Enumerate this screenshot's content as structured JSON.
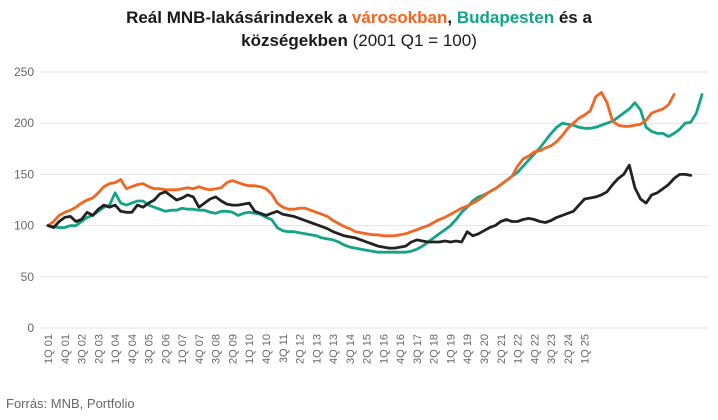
{
  "title": {
    "part1": "Reál MNB-lakásárindexek a ",
    "cities": "városokban",
    "comma": ", ",
    "budapest": "Budapesten",
    "part2": " és a",
    "villages": "községekben",
    "paren": " (2001 Q1 = 100)"
  },
  "source": "Forrás: MNB, Portfolio",
  "colors": {
    "cities": "#f26522",
    "budapest": "#13a386",
    "villages": "#222222",
    "grid": "#e3e3e3",
    "axis_text": "#666666"
  },
  "chart_data": {
    "type": "line",
    "ylim": [
      0,
      250
    ],
    "yticks": [
      0,
      50,
      100,
      150,
      200,
      250
    ],
    "grid": true,
    "x_tick_labels": [
      "1Q 01",
      "4Q 01",
      "3Q 02",
      "2Q 03",
      "1Q 04",
      "4Q 04",
      "3Q 05",
      "2Q 06",
      "1Q 07",
      "4Q 07",
      "3Q 08",
      "2Q 09",
      "1Q 10",
      "4Q 10",
      "3Q 11",
      "2Q 12",
      "1Q 13",
      "4Q 13",
      "3Q 14",
      "2Q 15",
      "1Q 16",
      "4Q 16",
      "3Q 17",
      "2Q 18",
      "1Q 19",
      "4Q 19",
      "3Q 20",
      "2Q 21",
      "1Q 22",
      "4Q 22",
      "3Q 23",
      "2Q 24",
      "1Q 25"
    ],
    "x_tick_every": 3,
    "series": [
      {
        "key": "cities",
        "values": [
          100,
          104,
          110,
          113,
          115,
          118,
          122,
          125,
          127,
          132,
          138,
          141,
          142,
          145,
          136,
          138,
          140,
          141,
          138,
          136,
          136,
          135,
          135,
          135,
          136,
          137,
          136,
          138,
          136,
          135,
          136,
          137,
          142,
          144,
          142,
          140,
          139,
          139,
          138,
          136,
          131,
          122,
          118,
          116,
          116,
          117,
          117,
          115,
          113,
          111,
          109,
          105,
          102,
          99,
          97,
          94,
          93,
          92,
          91,
          91,
          90,
          90,
          90,
          91,
          92,
          94,
          96,
          98,
          100,
          103,
          106,
          108,
          111,
          114,
          117,
          119,
          122,
          125,
          129,
          133,
          136,
          140,
          144,
          148,
          158,
          165,
          168,
          172,
          173,
          176,
          178,
          182,
          188,
          195,
          200,
          205,
          208,
          212,
          226,
          230,
          220,
          202,
          198,
          197,
          197,
          198,
          199,
          203,
          210,
          212,
          214,
          218,
          228
        ]
      },
      {
        "key": "budapest",
        "values": [
          100,
          99,
          98,
          98,
          100,
          100,
          104,
          108,
          110,
          114,
          118,
          120,
          132,
          122,
          120,
          122,
          124,
          124,
          120,
          118,
          116,
          114,
          115,
          115,
          117,
          116,
          116,
          115,
          115,
          113,
          112,
          114,
          114,
          113,
          110,
          112,
          113,
          112,
          111,
          108,
          106,
          98,
          95,
          94,
          94,
          93,
          92,
          91,
          90,
          88,
          87,
          86,
          84,
          81,
          79,
          78,
          77,
          76,
          75,
          74,
          74,
          74,
          74,
          74,
          74,
          75,
          77,
          80,
          84,
          88,
          92,
          96,
          100,
          106,
          113,
          118,
          124,
          128,
          130,
          133,
          136,
          140,
          144,
          148,
          152,
          158,
          164,
          170,
          176,
          183,
          190,
          196,
          200,
          199,
          198,
          196,
          195,
          195,
          196,
          198,
          200,
          202,
          206,
          210,
          214,
          220,
          213,
          196,
          192,
          190,
          190,
          187,
          190,
          194,
          200,
          201,
          210,
          228
        ]
      },
      {
        "key": "villages",
        "values": [
          100,
          98,
          104,
          108,
          109,
          104,
          106,
          113,
          110,
          116,
          120,
          118,
          120,
          114,
          113,
          113,
          120,
          118,
          122,
          125,
          131,
          133,
          129,
          125,
          127,
          130,
          128,
          118,
          122,
          126,
          128,
          124,
          121,
          120,
          120,
          121,
          122,
          114,
          112,
          110,
          112,
          114,
          111,
          110,
          109,
          107,
          105,
          103,
          101,
          99,
          97,
          94,
          92,
          90,
          89,
          88,
          86,
          84,
          82,
          80,
          79,
          78,
          78,
          79,
          80,
          84,
          86,
          85,
          84,
          84,
          84,
          85,
          84,
          85,
          84,
          94,
          90,
          92,
          95,
          98,
          100,
          104,
          106,
          104,
          104,
          106,
          107,
          106,
          104,
          103,
          105,
          108,
          110,
          112,
          114,
          120,
          126,
          127,
          128,
          130,
          133,
          140,
          146,
          150,
          159,
          137,
          126,
          122,
          130,
          132,
          136,
          140,
          146,
          150,
          150,
          149
        ]
      }
    ]
  }
}
